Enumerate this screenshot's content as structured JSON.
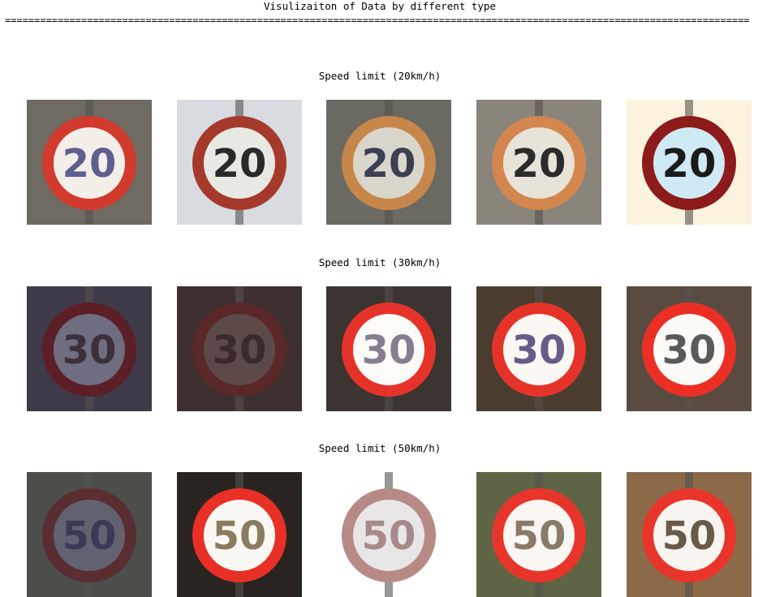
{
  "header": {
    "title": "Visulizaiton of Data by different type",
    "rule": "==============================================================================================================================="
  },
  "sections": [
    {
      "title": "Speed limit (20km/h)",
      "sign_text": "20",
      "thumbnails": [
        {
          "bg": "#6f6a62",
          "ring": "#d23a2e",
          "face": "#f4eee8",
          "num": "#5f5f90"
        },
        {
          "bg": "#d8dbe0",
          "ring": "#a53a2c",
          "face": "#e9e9e4",
          "num": "#2a2a2a"
        },
        {
          "bg": "#6b6a62",
          "ring": "#c8874a",
          "face": "#d9d6cc",
          "num": "#3b3f52"
        },
        {
          "bg": "#8a857b",
          "ring": "#d3874e",
          "face": "#e8e3d8",
          "num": "#2b2b2b"
        },
        {
          "bg": "#fbf3dd",
          "ring": "#8d1b1b",
          "face": "#cfeaf5",
          "num": "#1b1b1b"
        }
      ]
    },
    {
      "title": "Speed limit (30km/h)",
      "sign_text": "30",
      "thumbnails": [
        {
          "bg": "#3f3a48",
          "ring": "#5c1f28",
          "face": "#6e6e80",
          "num": "#3b2f3a"
        },
        {
          "bg": "#3e302f",
          "ring": "#5a2828",
          "face": "#5b4a48",
          "num": "#3a2b2b"
        },
        {
          "bg": "#3b3431",
          "ring": "#e6332a",
          "face": "#fdfbf8",
          "num": "#8a7c90"
        },
        {
          "bg": "#4a3d30",
          "ring": "#e6332a",
          "face": "#fbf7f3",
          "num": "#6a5a88"
        },
        {
          "bg": "#5a4b41",
          "ring": "#ec2f25",
          "face": "#fcfaf7",
          "num": "#5a5a5a"
        }
      ]
    },
    {
      "title": "Speed limit (50km/h)",
      "sign_text": "50",
      "thumbnails": [
        {
          "bg": "#4b4e49",
          "ring": "#5a2d30",
          "face": "#616270",
          "num": "#3a3a55"
        },
        {
          "bg": "#2a2420",
          "ring": "#e83026",
          "face": "#faf8f5",
          "num": "#8a7c60"
        },
        {
          "bg": "#ffffff",
          "ring": "#b88a86",
          "face": "#e8e6e6",
          "num": "#a88a88"
        },
        {
          "bg": "#5f6444",
          "ring": "#e8352b",
          "face": "#faf6f2",
          "num": "#8a7a6a"
        },
        {
          "bg": "#8b6a4a",
          "ring": "#e8352b",
          "face": "#f8f4ef",
          "num": "#6a5a4a"
        }
      ]
    }
  ]
}
